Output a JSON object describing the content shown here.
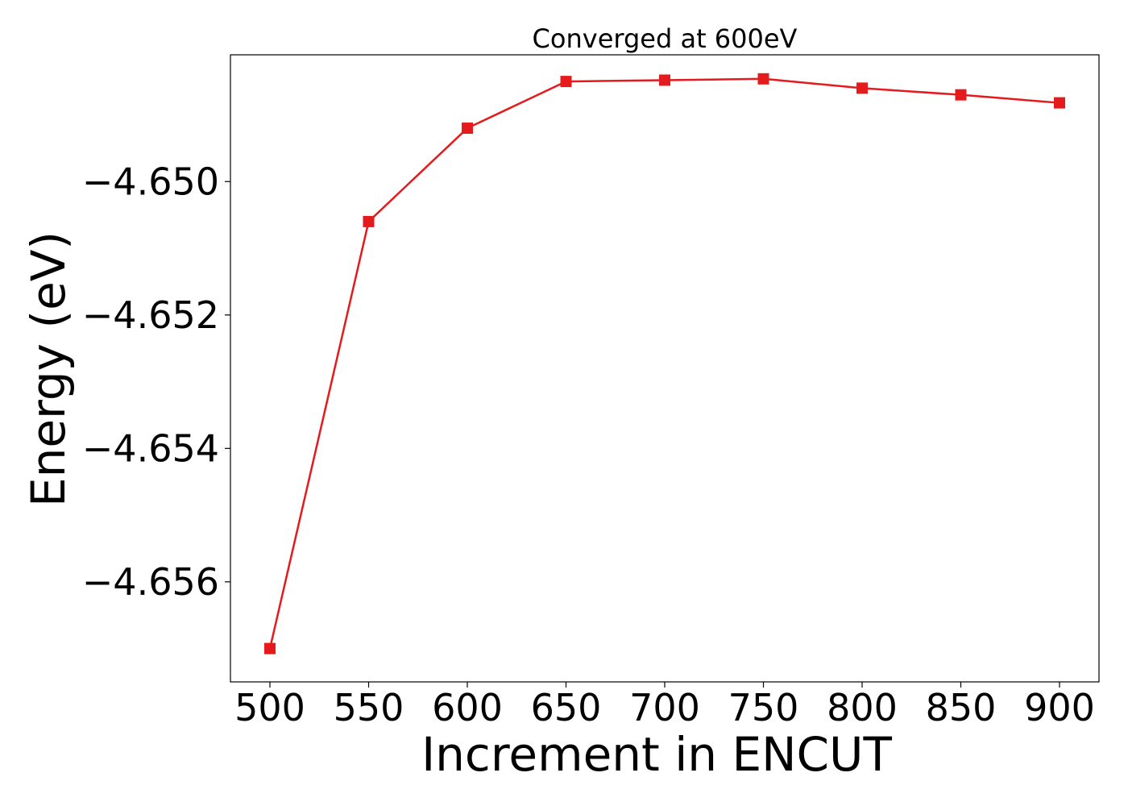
{
  "chart_data": {
    "type": "line",
    "title": "Converged at 600eV",
    "xlabel": "Increment in ENCUT",
    "ylabel": "Energy (eV)",
    "x": [
      500,
      550,
      600,
      650,
      700,
      750,
      800,
      850,
      900
    ],
    "xlim": [
      480,
      920
    ],
    "ylim": [
      -4.6575,
      -4.6481
    ],
    "x_ticks": [
      500,
      550,
      600,
      650,
      700,
      750,
      800,
      850,
      900
    ],
    "x_tick_labels": [
      "500",
      "550",
      "600",
      "650",
      "700",
      "750",
      "800",
      "850",
      "900"
    ],
    "y_ticks": [
      -4.65,
      -4.652,
      -4.654,
      -4.656
    ],
    "y_tick_labels": [
      "−4.650",
      "−4.652",
      "−4.654",
      "−4.656"
    ],
    "grid": false,
    "series": [
      {
        "values": [
          -4.657,
          -4.6506,
          -4.6492,
          -4.6485,
          -4.64848,
          -4.64846,
          -4.6486,
          -4.6487,
          -4.64882
        ],
        "color": "#e41a1c",
        "marker": "square"
      }
    ]
  }
}
